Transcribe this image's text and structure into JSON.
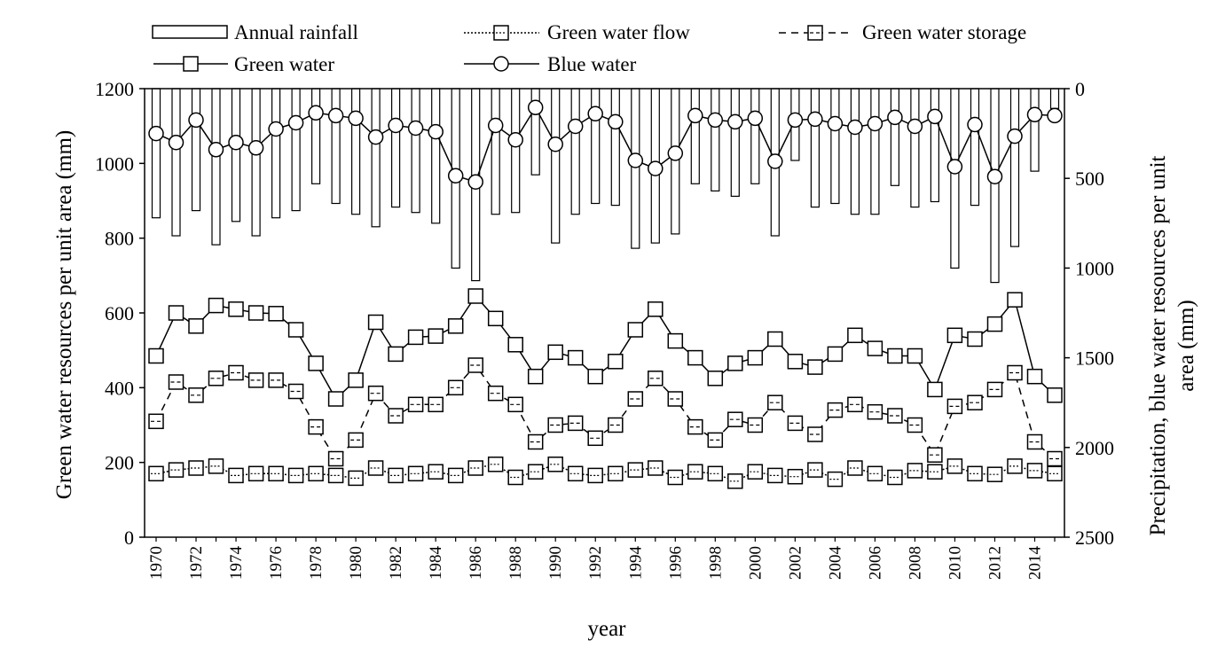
{
  "chart_data": {
    "type": "bar+line",
    "xlabel": "year",
    "ylabel_left": "Green water resources per unit area (mm)",
    "ylabel_right_line1": "Precipitation, blue water resources per unit",
    "ylabel_right_line2": "area (mm)",
    "ylim_left": [
      0,
      1200
    ],
    "ylim_right": [
      0,
      2500
    ],
    "right_axis_inverted": true,
    "left_ticks": [
      "0",
      "200",
      "400",
      "600",
      "800",
      "1000",
      "1200"
    ],
    "right_ticks": [
      "0",
      "500",
      "1000",
      "1500",
      "2000",
      "2500"
    ],
    "years": [
      1970,
      1971,
      1972,
      1973,
      1974,
      1975,
      1976,
      1977,
      1978,
      1979,
      1980,
      1981,
      1982,
      1983,
      1984,
      1985,
      1986,
      1987,
      1988,
      1989,
      1990,
      1991,
      1992,
      1993,
      1994,
      1995,
      1996,
      1997,
      1998,
      1999,
      2000,
      2001,
      2002,
      2003,
      2004,
      2005,
      2006,
      2007,
      2008,
      2009,
      2010,
      2011,
      2012,
      2013,
      2014,
      2015
    ],
    "x_tick_labels": [
      "1970",
      "1972",
      "1974",
      "1976",
      "1978",
      "1980",
      "1982",
      "1984",
      "1986",
      "1988",
      "1990",
      "1992",
      "1994",
      "1996",
      "1998",
      "2000",
      "2002",
      "2004",
      "2006",
      "2008",
      "2010",
      "2012",
      "2014"
    ],
    "legend": {
      "rainfall": "Annual rainfall",
      "green_flow": "Green water flow",
      "green_storage": "Green water storage",
      "green_water": "Green water",
      "blue_water": "Blue water"
    },
    "series": [
      {
        "name": "Annual rainfall",
        "axis": "right",
        "style": "bar",
        "values": [
          720,
          820,
          680,
          870,
          740,
          820,
          720,
          680,
          530,
          640,
          700,
          770,
          660,
          690,
          750,
          1000,
          1070,
          700,
          690,
          480,
          860,
          700,
          640,
          650,
          890,
          860,
          810,
          530,
          570,
          600,
          530,
          820,
          400,
          660,
          640,
          700,
          700,
          540,
          660,
          630,
          1000,
          650,
          1080,
          880,
          460,
          110
        ]
      },
      {
        "name": "Green water flow",
        "axis": "left",
        "style": "dotted-square",
        "values": [
          170,
          180,
          185,
          190,
          165,
          170,
          170,
          165,
          170,
          165,
          158,
          185,
          165,
          170,
          175,
          165,
          185,
          195,
          160,
          175,
          195,
          170,
          165,
          170,
          180,
          185,
          160,
          175,
          170,
          150,
          175,
          165,
          162,
          180,
          155,
          185,
          170,
          160,
          178,
          175,
          190,
          170,
          168,
          190,
          178,
          170
        ]
      },
      {
        "name": "Green water storage",
        "axis": "left",
        "style": "dashed-square",
        "values": [
          310,
          415,
          380,
          425,
          440,
          420,
          420,
          390,
          295,
          210,
          260,
          385,
          325,
          355,
          355,
          400,
          460,
          385,
          355,
          255,
          300,
          305,
          265,
          300,
          370,
          425,
          370,
          295,
          260,
          315,
          300,
          360,
          305,
          275,
          340,
          355,
          335,
          325,
          300,
          220,
          350,
          360,
          395,
          440,
          255,
          210
        ]
      },
      {
        "name": "Green water",
        "axis": "left",
        "style": "solid-square",
        "values": [
          485,
          600,
          565,
          620,
          610,
          600,
          598,
          555,
          465,
          370,
          420,
          575,
          490,
          535,
          538,
          565,
          645,
          585,
          515,
          430,
          495,
          480,
          430,
          470,
          555,
          610,
          525,
          480,
          425,
          465,
          480,
          530,
          470,
          455,
          490,
          540,
          505,
          485,
          485,
          395,
          540,
          530,
          570,
          635,
          430,
          380
        ]
      },
      {
        "name": "Blue water",
        "axis": "right",
        "style": "solid-circle",
        "values": [
          250,
          300,
          175,
          340,
          300,
          330,
          225,
          190,
          135,
          150,
          165,
          270,
          205,
          220,
          240,
          485,
          520,
          205,
          285,
          105,
          310,
          210,
          140,
          185,
          400,
          445,
          360,
          150,
          175,
          185,
          165,
          405,
          175,
          170,
          195,
          215,
          195,
          160,
          210,
          155,
          435,
          200,
          490,
          265,
          145,
          150
        ]
      }
    ]
  }
}
